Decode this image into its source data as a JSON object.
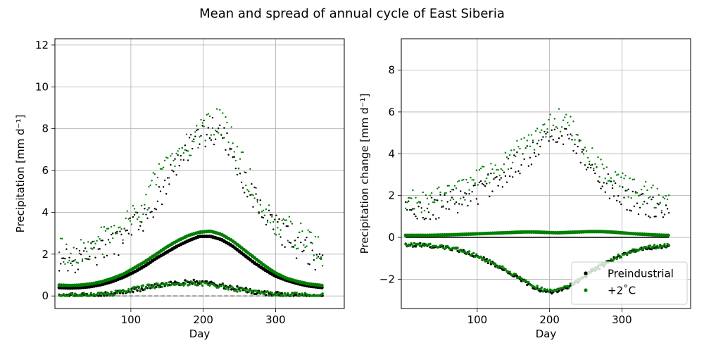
{
  "figure": {
    "title": "Mean and spread of annual cycle of East Siberia"
  },
  "colors": {
    "preindustrial": "#000000",
    "warming": "#008000",
    "grid": "#b0b0b0",
    "dashed_zero": "#808080"
  },
  "chart_data": [
    {
      "type": "scatter",
      "xlabel": "Day",
      "ylabel": "Precipitation [mm d⁻¹]",
      "xlim": [
        -5,
        395
      ],
      "ylim": [
        -0.6,
        12.3
      ],
      "xticks": [
        100,
        200,
        300
      ],
      "yticks": [
        0,
        2,
        4,
        6,
        8,
        10,
        12
      ],
      "grid": true,
      "legend": "none",
      "reference_line": {
        "y": 0,
        "style": "dashed",
        "color": "gray"
      },
      "series": [
        {
          "role": "mean",
          "group": "Preindustrial",
          "x": [
            1,
            15,
            30,
            45,
            60,
            75,
            90,
            105,
            120,
            135,
            150,
            165,
            180,
            195,
            210,
            225,
            240,
            255,
            270,
            285,
            300,
            315,
            330,
            345,
            360,
            365
          ],
          "y": [
            0.4,
            0.38,
            0.4,
            0.45,
            0.55,
            0.7,
            0.9,
            1.15,
            1.45,
            1.8,
            2.1,
            2.4,
            2.65,
            2.85,
            2.85,
            2.7,
            2.4,
            2.0,
            1.6,
            1.25,
            0.95,
            0.75,
            0.6,
            0.48,
            0.42,
            0.4
          ]
        },
        {
          "role": "mean",
          "group": "+2°C",
          "x": [
            1,
            15,
            30,
            45,
            60,
            75,
            90,
            105,
            120,
            135,
            150,
            165,
            180,
            195,
            210,
            225,
            240,
            255,
            270,
            285,
            300,
            315,
            330,
            345,
            360,
            365
          ],
          "y": [
            0.52,
            0.5,
            0.52,
            0.58,
            0.68,
            0.85,
            1.05,
            1.35,
            1.65,
            2.0,
            2.35,
            2.65,
            2.9,
            3.05,
            3.1,
            2.95,
            2.65,
            2.25,
            1.85,
            1.45,
            1.1,
            0.85,
            0.7,
            0.58,
            0.52,
            0.5
          ]
        },
        {
          "role": "high",
          "group": "Preindustrial",
          "x": [
            1,
            15,
            30,
            45,
            60,
            75,
            90,
            105,
            120,
            135,
            150,
            165,
            180,
            195,
            210,
            225,
            240,
            255,
            270,
            285,
            300,
            315,
            330,
            345,
            360,
            365
          ],
          "y": [
            1.8,
            1.6,
            1.8,
            1.9,
            2.1,
            2.4,
            2.8,
            3.3,
            3.8,
            4.6,
            5.4,
            6.2,
            7.0,
            7.6,
            7.9,
            7.6,
            6.8,
            5.6,
            4.6,
            3.8,
            3.2,
            2.8,
            2.4,
            2.1,
            1.8,
            1.7
          ]
        },
        {
          "role": "high",
          "group": "+2°C",
          "x": [
            1,
            15,
            30,
            45,
            60,
            75,
            90,
            105,
            120,
            135,
            150,
            165,
            180,
            195,
            210,
            225,
            240,
            255,
            270,
            285,
            300,
            315,
            330,
            345,
            360,
            365
          ],
          "y": [
            2.2,
            2.1,
            2.2,
            2.4,
            2.6,
            2.9,
            3.3,
            3.8,
            4.6,
            5.5,
            6.2,
            6.8,
            7.3,
            7.8,
            8.3,
            8.2,
            7.4,
            6.2,
            5.0,
            4.2,
            3.6,
            3.2,
            2.9,
            2.6,
            2.2,
            2.1
          ]
        },
        {
          "role": "low",
          "group": "Preindustrial",
          "x": [
            1,
            15,
            30,
            45,
            60,
            75,
            90,
            105,
            120,
            135,
            150,
            165,
            180,
            195,
            210,
            225,
            240,
            255,
            270,
            285,
            300,
            315,
            330,
            345,
            360,
            365
          ],
          "y": [
            0.02,
            0.02,
            0.03,
            0.04,
            0.05,
            0.1,
            0.18,
            0.28,
            0.38,
            0.48,
            0.56,
            0.62,
            0.66,
            0.66,
            0.6,
            0.5,
            0.4,
            0.3,
            0.2,
            0.13,
            0.08,
            0.05,
            0.03,
            0.02,
            0.02,
            0.02
          ]
        },
        {
          "role": "low",
          "group": "+2°C",
          "x": [
            1,
            15,
            30,
            45,
            60,
            75,
            90,
            105,
            120,
            135,
            150,
            165,
            180,
            195,
            210,
            225,
            240,
            255,
            270,
            285,
            300,
            315,
            330,
            345,
            360,
            365
          ],
          "y": [
            0.03,
            0.03,
            0.04,
            0.05,
            0.07,
            0.12,
            0.22,
            0.32,
            0.42,
            0.5,
            0.56,
            0.6,
            0.62,
            0.6,
            0.55,
            0.46,
            0.36,
            0.26,
            0.18,
            0.12,
            0.08,
            0.05,
            0.04,
            0.03,
            0.03,
            0.03
          ]
        }
      ]
    },
    {
      "type": "scatter",
      "xlabel": "Day",
      "ylabel": "Precipitation change [mm d⁻¹]",
      "xlim": [
        -5,
        395
      ],
      "ylim": [
        -3.4,
        9.5
      ],
      "xticks": [
        100,
        200,
        300
      ],
      "yticks": [
        -2,
        0,
        2,
        4,
        6,
        8
      ],
      "grid": true,
      "legend": "lower right",
      "legend_entries": [
        "Preindustrial",
        "+2˚C"
      ],
      "reference_line": {
        "y": 0,
        "style": "solid",
        "color": "black"
      },
      "series": [
        {
          "role": "mean_change",
          "group": "+2°C",
          "x": [
            1,
            15,
            30,
            45,
            60,
            75,
            90,
            105,
            120,
            135,
            150,
            165,
            180,
            195,
            210,
            225,
            240,
            255,
            270,
            285,
            300,
            315,
            330,
            345,
            360,
            365
          ],
          "y": [
            0.1,
            0.1,
            0.1,
            0.11,
            0.12,
            0.14,
            0.16,
            0.18,
            0.2,
            0.22,
            0.24,
            0.26,
            0.26,
            0.24,
            0.22,
            0.24,
            0.26,
            0.28,
            0.28,
            0.26,
            0.22,
            0.18,
            0.15,
            0.12,
            0.1,
            0.1
          ]
        },
        {
          "role": "high",
          "group": "Preindustrial",
          "x": [
            1,
            15,
            30,
            45,
            60,
            75,
            90,
            105,
            120,
            135,
            150,
            165,
            180,
            195,
            210,
            225,
            240,
            255,
            270,
            285,
            300,
            315,
            330,
            345,
            360,
            365
          ],
          "y": [
            1.4,
            1.2,
            1.3,
            1.4,
            1.6,
            1.8,
            2.0,
            2.2,
            2.6,
            3.0,
            3.4,
            3.7,
            4.1,
            4.6,
            5.1,
            4.8,
            4.2,
            3.6,
            2.8,
            2.3,
            1.9,
            1.7,
            1.5,
            1.4,
            1.3,
            1.3
          ]
        },
        {
          "role": "high",
          "group": "+2°C",
          "x": [
            1,
            15,
            30,
            45,
            60,
            75,
            90,
            105,
            120,
            135,
            150,
            165,
            180,
            195,
            210,
            225,
            240,
            255,
            270,
            285,
            300,
            315,
            330,
            345,
            360,
            365
          ],
          "y": [
            1.9,
            1.7,
            1.7,
            1.8,
            2.0,
            2.2,
            2.5,
            2.8,
            3.2,
            3.6,
            4.0,
            4.3,
            4.6,
            5.1,
            5.6,
            5.4,
            4.7,
            4.0,
            3.2,
            2.8,
            2.5,
            2.3,
            2.1,
            1.9,
            1.8,
            1.8
          ]
        },
        {
          "role": "low",
          "group": "Preindustrial",
          "x": [
            1,
            15,
            30,
            45,
            60,
            75,
            90,
            105,
            120,
            135,
            150,
            165,
            180,
            195,
            210,
            225,
            240,
            255,
            270,
            285,
            300,
            315,
            330,
            345,
            360,
            365
          ],
          "y": [
            -0.38,
            -0.36,
            -0.38,
            -0.43,
            -0.5,
            -0.62,
            -0.78,
            -0.98,
            -1.22,
            -1.5,
            -1.8,
            -2.1,
            -2.4,
            -2.6,
            -2.6,
            -2.4,
            -2.1,
            -1.7,
            -1.4,
            -1.1,
            -0.85,
            -0.68,
            -0.55,
            -0.46,
            -0.4,
            -0.38
          ]
        },
        {
          "role": "low",
          "group": "+2°C",
          "x": [
            1,
            15,
            30,
            45,
            60,
            75,
            90,
            105,
            120,
            135,
            150,
            165,
            180,
            195,
            210,
            225,
            240,
            255,
            270,
            285,
            300,
            315,
            330,
            345,
            360,
            365
          ],
          "y": [
            -0.37,
            -0.35,
            -0.37,
            -0.42,
            -0.49,
            -0.6,
            -0.76,
            -0.96,
            -1.2,
            -1.48,
            -1.76,
            -2.05,
            -2.35,
            -2.55,
            -2.55,
            -2.35,
            -2.05,
            -1.66,
            -1.36,
            -1.07,
            -0.83,
            -0.66,
            -0.53,
            -0.45,
            -0.39,
            -0.37
          ]
        }
      ]
    }
  ]
}
